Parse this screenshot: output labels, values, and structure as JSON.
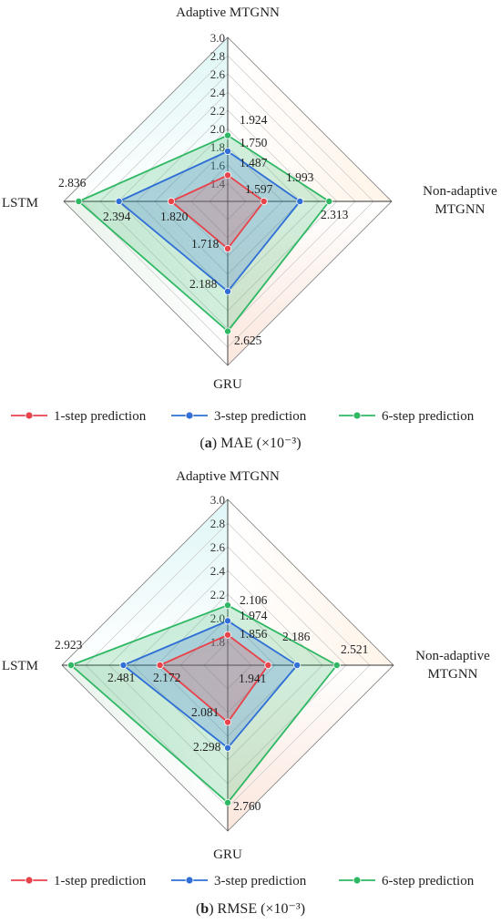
{
  "chart_data": [
    {
      "type": "radar",
      "caption_letter": "a",
      "caption_text": " MAE (×10⁻³)",
      "axes": [
        "Adaptive MTGNN",
        "Non-adaptive MTGNN",
        "GRU",
        "LSTM"
      ],
      "axis_label_lines": [
        [
          "Adaptive MTGNN"
        ],
        [
          "Non-adaptive",
          "MTGNN"
        ],
        [
          "GRU"
        ],
        [
          "LSTM"
        ]
      ],
      "rlim": [
        1.2,
        3.0
      ],
      "ticks": [
        "1.4",
        "1.6",
        "1.8",
        "2.0",
        "2.2",
        "2.4",
        "2.6",
        "2.8",
        "3.0"
      ],
      "grid": true,
      "series": [
        {
          "name": "1-step prediction",
          "color": "#e8424a",
          "values": [
            1.487,
            1.597,
            1.718,
            1.82
          ],
          "labels": [
            "1.487",
            "1.597",
            "1.718",
            "1.820"
          ]
        },
        {
          "name": "3-step prediction",
          "color": "#2f6fd6",
          "values": [
            1.75,
            1.993,
            2.188,
            2.394
          ],
          "labels": [
            "1.750",
            "1.993",
            "2.188",
            "2.394"
          ]
        },
        {
          "name": "6-step prediction",
          "color": "#2fb864",
          "values": [
            1.924,
            2.313,
            2.625,
            2.836
          ],
          "labels": [
            "1.924",
            "2.313",
            "2.625",
            "2.836"
          ]
        }
      ],
      "legend_placement": "bottom"
    },
    {
      "type": "radar",
      "caption_letter": "b",
      "caption_text": " RMSE (×10⁻³)",
      "axes": [
        "Adaptive MTGNN",
        "Non-adaptive MTGNN",
        "GRU",
        "LSTM"
      ],
      "axis_label_lines": [
        [
          "Adaptive MTGNN"
        ],
        [
          "Non-adaptive",
          "MTGNN"
        ],
        [
          "GRU"
        ],
        [
          "LSTM"
        ]
      ],
      "rlim": [
        1.6,
        3.0
      ],
      "ticks": [
        "1.8",
        "2.0",
        "2.2",
        "2.4",
        "2.6",
        "2.8",
        "3.0"
      ],
      "grid": true,
      "series": [
        {
          "name": "1-step prediction",
          "color": "#e8424a",
          "values": [
            1.856,
            1.941,
            2.081,
            2.172
          ],
          "labels": [
            "1.856",
            "1.941",
            "2.081",
            "2.172"
          ]
        },
        {
          "name": "3-step prediction",
          "color": "#2f6fd6",
          "values": [
            1.974,
            2.186,
            2.298,
            2.481
          ],
          "labels": [
            "1.974",
            "2.186",
            "2.298",
            "2.481"
          ]
        },
        {
          "name": "6-step prediction",
          "color": "#2fb864",
          "values": [
            2.106,
            2.521,
            2.76,
            2.923
          ],
          "labels": [
            "2.106",
            "2.521",
            "2.760",
            "2.923"
          ]
        }
      ],
      "legend_placement": "bottom"
    }
  ]
}
